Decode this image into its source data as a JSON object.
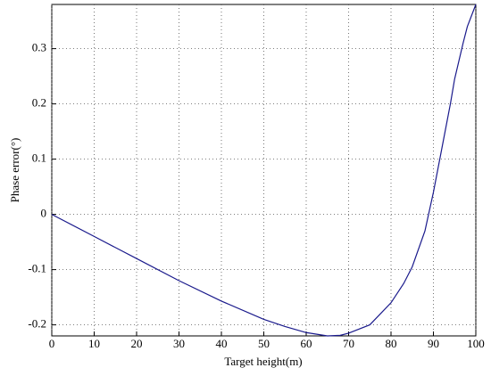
{
  "chart_data": {
    "type": "line",
    "xlabel": "Target height(m)",
    "ylabel": "Phase error(°)",
    "x": [
      0,
      10,
      20,
      30,
      40,
      50,
      55,
      60,
      65,
      68,
      70,
      75,
      80,
      83,
      85,
      88,
      90,
      92,
      94,
      95,
      97,
      98,
      100
    ],
    "series": [
      {
        "name": "Phase error",
        "color": "#1a1a8c",
        "values": [
          0,
          -0.04,
          -0.08,
          -0.12,
          -0.157,
          -0.19,
          -0.203,
          -0.214,
          -0.22,
          -0.219,
          -0.215,
          -0.2,
          -0.16,
          -0.125,
          -0.095,
          -0.03,
          0.04,
          0.12,
          0.2,
          0.245,
          0.31,
          0.34,
          0.38
        ]
      }
    ],
    "xlim": [
      0,
      100
    ],
    "xticks": [
      0,
      10,
      20,
      30,
      40,
      50,
      60,
      70,
      80,
      90,
      100
    ],
    "ylim": [
      -0.22,
      0.38
    ],
    "yticks": [
      -0.2,
      -0.1,
      0,
      0.1,
      0.2,
      0.3
    ],
    "grid": true
  }
}
